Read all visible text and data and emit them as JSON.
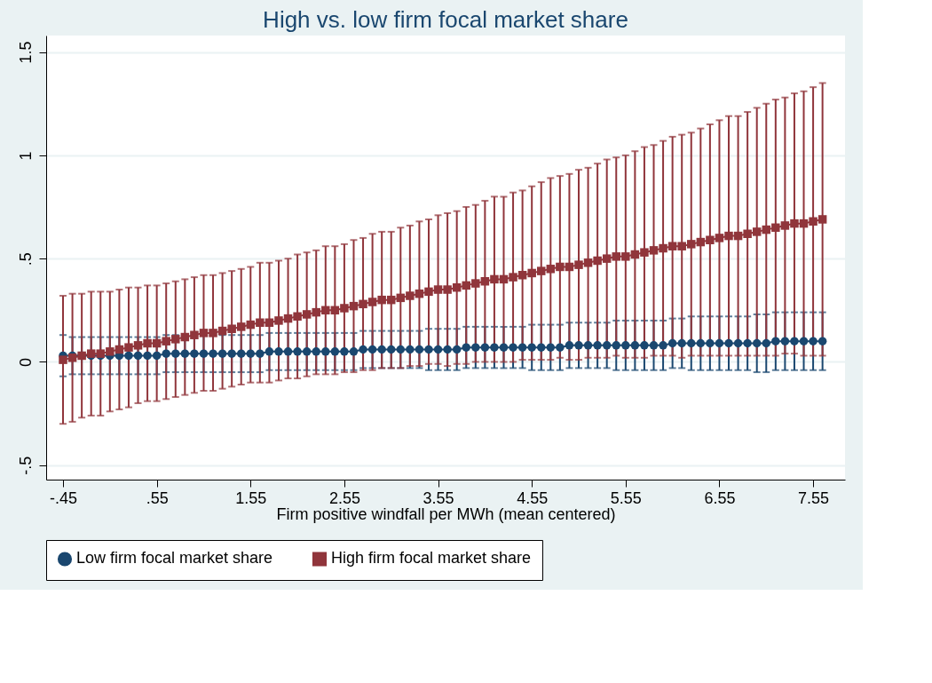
{
  "chart_data": {
    "type": "line",
    "title": "High vs. low firm focal market share",
    "xlabel": "Firm positive windfall per MWh (mean centered)",
    "x": [
      -0.45,
      -0.35,
      -0.25,
      -0.15,
      -0.05,
      0.05,
      0.15,
      0.25,
      0.35,
      0.45,
      0.55,
      0.65,
      0.75,
      0.85,
      0.95,
      1.05,
      1.15,
      1.25,
      1.35,
      1.45,
      1.55,
      1.65,
      1.75,
      1.85,
      1.95,
      2.05,
      2.15,
      2.25,
      2.35,
      2.45,
      2.55,
      2.65,
      2.75,
      2.85,
      2.95,
      3.05,
      3.15,
      3.25,
      3.35,
      3.45,
      3.55,
      3.65,
      3.75,
      3.85,
      3.95,
      4.05,
      4.15,
      4.25,
      4.35,
      4.45,
      4.55,
      4.65,
      4.75,
      4.85,
      4.95,
      5.05,
      5.15,
      5.25,
      5.35,
      5.45,
      5.55,
      5.65,
      5.75,
      5.85,
      5.95,
      6.05,
      6.15,
      6.25,
      6.35,
      6.45,
      6.55,
      6.65,
      6.75,
      6.85,
      6.95,
      7.05,
      7.15,
      7.25,
      7.35,
      7.45,
      7.55,
      7.65
    ],
    "series": [
      {
        "name": "Low firm focal market share",
        "color": "#1a476f",
        "marker": "circle",
        "values": [
          0.03,
          0.03,
          0.03,
          0.03,
          0.03,
          0.03,
          0.03,
          0.03,
          0.03,
          0.03,
          0.03,
          0.04,
          0.04,
          0.04,
          0.04,
          0.04,
          0.04,
          0.04,
          0.04,
          0.04,
          0.04,
          0.04,
          0.05,
          0.05,
          0.05,
          0.05,
          0.05,
          0.05,
          0.05,
          0.05,
          0.05,
          0.05,
          0.06,
          0.06,
          0.06,
          0.06,
          0.06,
          0.06,
          0.06,
          0.06,
          0.06,
          0.06,
          0.06,
          0.07,
          0.07,
          0.07,
          0.07,
          0.07,
          0.07,
          0.07,
          0.07,
          0.07,
          0.07,
          0.07,
          0.08,
          0.08,
          0.08,
          0.08,
          0.08,
          0.08,
          0.08,
          0.08,
          0.08,
          0.08,
          0.08,
          0.09,
          0.09,
          0.09,
          0.09,
          0.09,
          0.09,
          0.09,
          0.09,
          0.09,
          0.09,
          0.09,
          0.1,
          0.1,
          0.1,
          0.1,
          0.1,
          0.1
        ],
        "errors": [
          0.1,
          0.09,
          0.09,
          0.09,
          0.09,
          0.09,
          0.09,
          0.09,
          0.09,
          0.09,
          0.09,
          0.09,
          0.09,
          0.09,
          0.09,
          0.09,
          0.09,
          0.09,
          0.09,
          0.09,
          0.09,
          0.09,
          0.09,
          0.09,
          0.09,
          0.09,
          0.09,
          0.09,
          0.09,
          0.09,
          0.09,
          0.09,
          0.09,
          0.09,
          0.09,
          0.09,
          0.09,
          0.09,
          0.09,
          0.1,
          0.1,
          0.1,
          0.1,
          0.1,
          0.1,
          0.1,
          0.1,
          0.1,
          0.1,
          0.1,
          0.11,
          0.11,
          0.11,
          0.11,
          0.11,
          0.11,
          0.11,
          0.11,
          0.11,
          0.12,
          0.12,
          0.12,
          0.12,
          0.12,
          0.12,
          0.12,
          0.12,
          0.13,
          0.13,
          0.13,
          0.13,
          0.13,
          0.13,
          0.13,
          0.14,
          0.14,
          0.14,
          0.14,
          0.14,
          0.14,
          0.14,
          0.14
        ]
      },
      {
        "name": "High firm focal market share",
        "color": "#90353b",
        "marker": "square",
        "values": [
          0.01,
          0.02,
          0.03,
          0.04,
          0.04,
          0.05,
          0.06,
          0.07,
          0.08,
          0.09,
          0.09,
          0.1,
          0.11,
          0.12,
          0.13,
          0.14,
          0.14,
          0.15,
          0.16,
          0.17,
          0.18,
          0.19,
          0.19,
          0.2,
          0.21,
          0.22,
          0.23,
          0.24,
          0.25,
          0.25,
          0.26,
          0.27,
          0.28,
          0.29,
          0.3,
          0.3,
          0.31,
          0.32,
          0.33,
          0.34,
          0.35,
          0.35,
          0.36,
          0.37,
          0.38,
          0.39,
          0.4,
          0.4,
          0.41,
          0.42,
          0.43,
          0.44,
          0.45,
          0.46,
          0.46,
          0.47,
          0.48,
          0.49,
          0.5,
          0.51,
          0.51,
          0.52,
          0.53,
          0.54,
          0.55,
          0.56,
          0.56,
          0.57,
          0.58,
          0.59,
          0.6,
          0.61,
          0.61,
          0.62,
          0.63,
          0.64,
          0.65,
          0.66,
          0.67,
          0.67,
          0.68,
          0.69
        ],
        "errors": [
          0.31,
          0.31,
          0.3,
          0.3,
          0.3,
          0.29,
          0.29,
          0.29,
          0.28,
          0.28,
          0.28,
          0.28,
          0.28,
          0.28,
          0.28,
          0.28,
          0.28,
          0.28,
          0.28,
          0.28,
          0.28,
          0.29,
          0.29,
          0.29,
          0.29,
          0.3,
          0.3,
          0.3,
          0.31,
          0.31,
          0.31,
          0.32,
          0.32,
          0.33,
          0.33,
          0.33,
          0.34,
          0.34,
          0.35,
          0.35,
          0.36,
          0.37,
          0.37,
          0.38,
          0.38,
          0.39,
          0.4,
          0.4,
          0.41,
          0.41,
          0.42,
          0.43,
          0.44,
          0.44,
          0.45,
          0.46,
          0.46,
          0.47,
          0.48,
          0.48,
          0.49,
          0.5,
          0.51,
          0.51,
          0.52,
          0.53,
          0.54,
          0.54,
          0.55,
          0.56,
          0.57,
          0.58,
          0.58,
          0.59,
          0.6,
          0.61,
          0.62,
          0.62,
          0.63,
          0.64,
          0.65,
          0.66
        ]
      }
    ],
    "xlim": [
      -0.63,
      7.89
    ],
    "xticks": [
      {
        "value": -0.45,
        "label": "-.45"
      },
      {
        "value": 0.55,
        "label": ".55"
      },
      {
        "value": 1.55,
        "label": "1.55"
      },
      {
        "value": 2.55,
        "label": "2.55"
      },
      {
        "value": 3.55,
        "label": "3.55"
      },
      {
        "value": 4.55,
        "label": "4.55"
      },
      {
        "value": 5.55,
        "label": "5.55"
      },
      {
        "value": 6.55,
        "label": "6.55"
      },
      {
        "value": 7.55,
        "label": "7.55"
      }
    ],
    "ylim": [
      -0.57,
      1.58
    ],
    "yticks": [
      {
        "value": -0.5,
        "label": "-.5"
      },
      0,
      {
        "value": 0.5,
        "label": ".5"
      },
      1,
      1.5
    ],
    "grid": "y",
    "legend": "bottom",
    "line_style": "solid"
  }
}
